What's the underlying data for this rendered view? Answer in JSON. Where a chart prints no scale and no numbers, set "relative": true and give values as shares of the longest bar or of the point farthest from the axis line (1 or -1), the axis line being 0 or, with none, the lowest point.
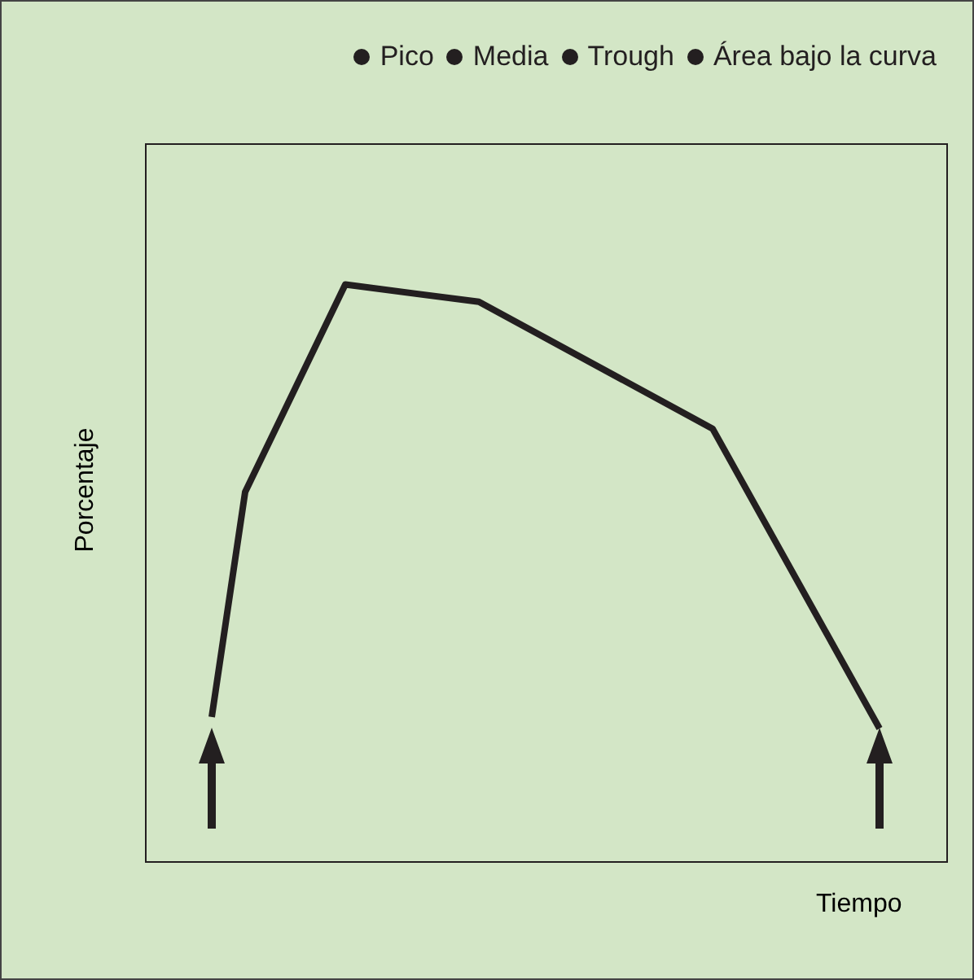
{
  "chart_data": {
    "type": "line",
    "relative": true,
    "xlabel": "Tiempo",
    "ylabel": "Porcentaje",
    "annotations": [
      "Pico",
      "Media",
      "Trough",
      "Área bajo la curva"
    ],
    "categories": [
      null,
      null,
      null,
      null,
      null,
      null,
      null,
      null,
      null,
      null,
      null,
      null,
      null,
      null,
      null,
      null,
      null,
      null,
      null,
      null,
      null,
      null,
      null,
      null,
      null
    ],
    "series": [
      {
        "color": "#231f20",
        "values": [
          null,
          null,
          0.25,
          0.64,
          null,
          null,
          1,
          null,
          null,
          null,
          0.97,
          null,
          null,
          null,
          null,
          null,
          null,
          0.75,
          null,
          null,
          null,
          null,
          0.23,
          null,
          null
        ]
      }
    ],
    "legend": false,
    "marker": "none",
    "line_style": "solid"
  }
}
